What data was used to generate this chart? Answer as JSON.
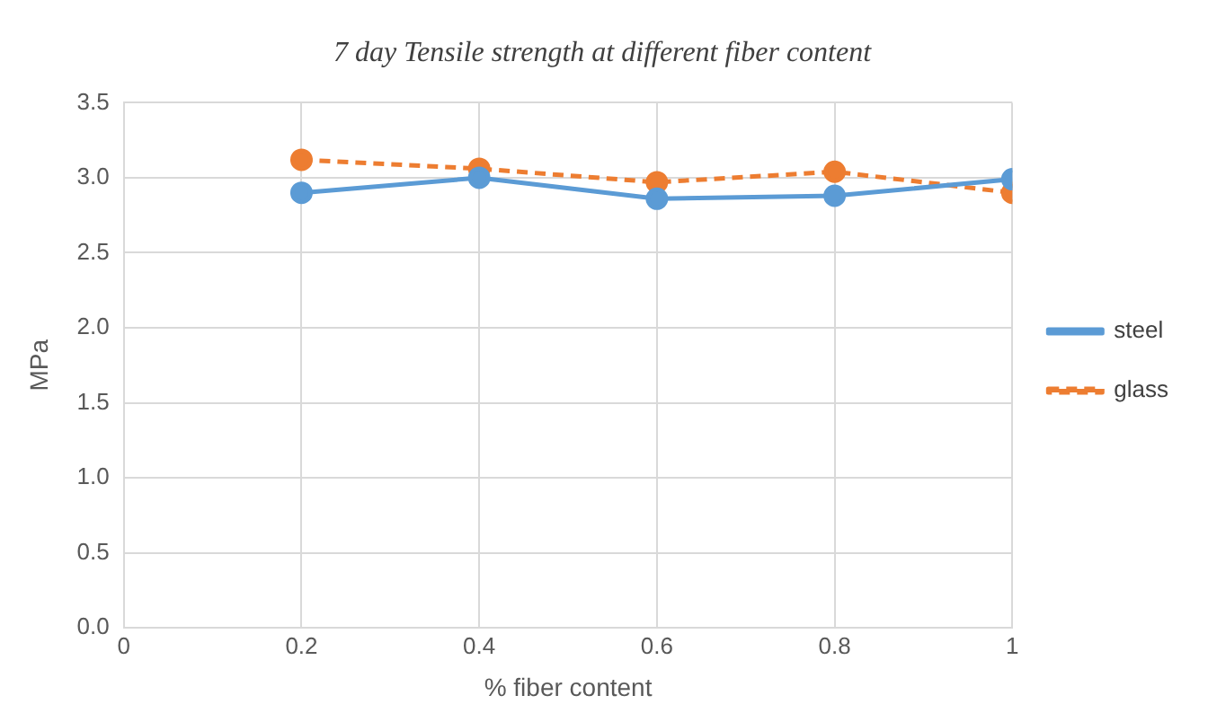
{
  "chart_data": {
    "type": "line",
    "title": "7 day Tensile strength at different fiber content",
    "xlabel": "% fiber content",
    "ylabel": "MPa",
    "x": [
      0.2,
      0.4,
      0.6,
      0.8,
      1
    ],
    "series": [
      {
        "name": "steel",
        "color": "#5b9bd5",
        "values": [
          2.9,
          3.0,
          2.86,
          2.88,
          2.99
        ],
        "line_style": "solid"
      },
      {
        "name": "glass",
        "color": "#ed7d31",
        "values": [
          3.12,
          3.06,
          2.97,
          3.04,
          2.9
        ],
        "line_style": "dashed"
      }
    ],
    "xlim": [
      0,
      1
    ],
    "xticks": [
      0,
      0.2,
      0.4,
      0.6,
      0.8,
      1
    ],
    "ylim": [
      0,
      3.5
    ],
    "yticks": [
      {
        "value": 0,
        "label": "0.0"
      },
      {
        "value": 0.5,
        "label": "0.5"
      },
      {
        "value": 1,
        "label": "1.0"
      },
      {
        "value": 1.5,
        "label": "1.5"
      },
      {
        "value": 2,
        "label": "2.0"
      },
      {
        "value": 2.5,
        "label": "2.5"
      },
      {
        "value": 3,
        "label": "3.0"
      },
      {
        "value": 3.5,
        "label": "3.5"
      }
    ],
    "grid": true,
    "legend": "right",
    "marker": "circle"
  }
}
